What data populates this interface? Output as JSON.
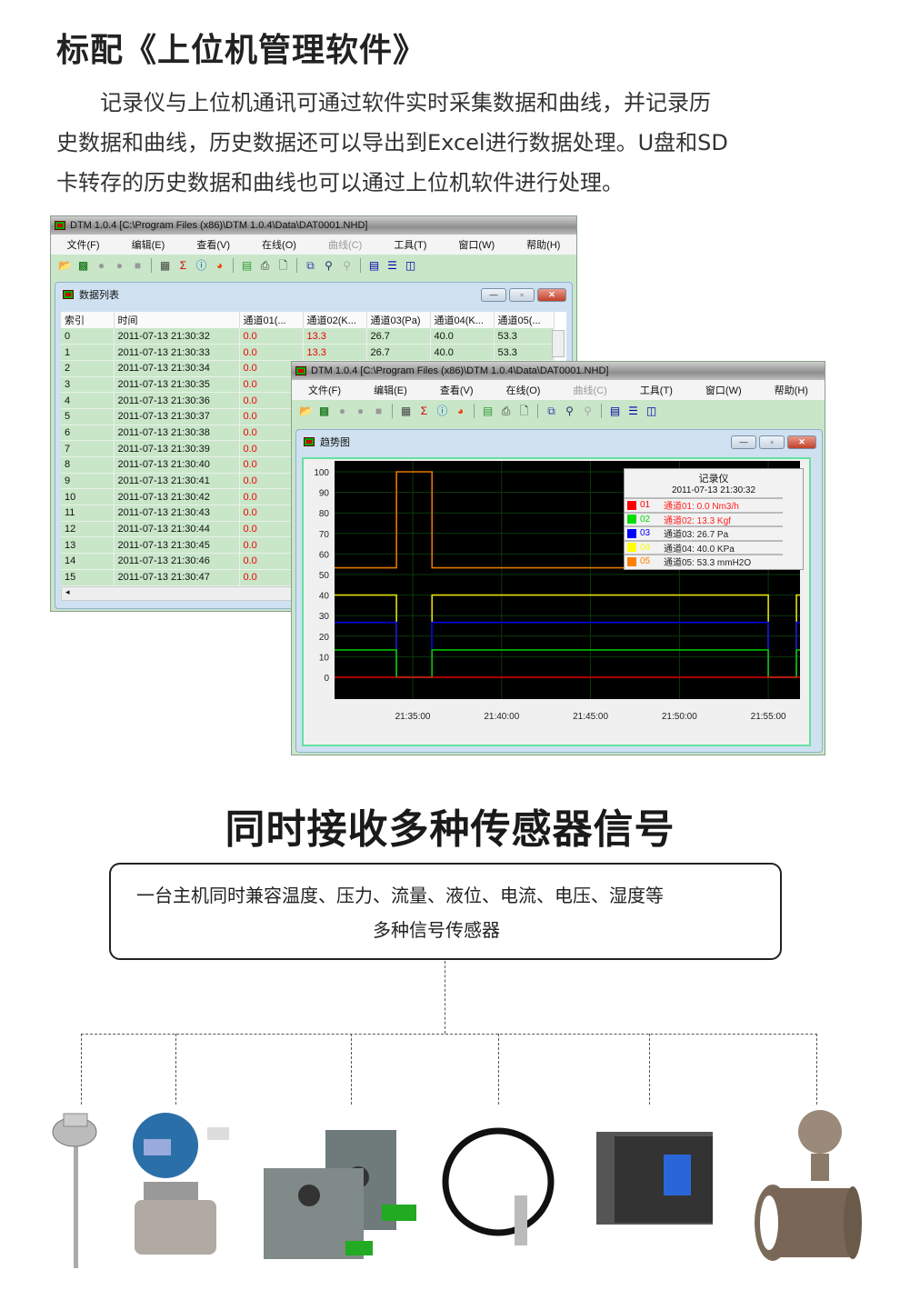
{
  "header": {
    "title": "标配《上位机管理软件》",
    "paragraph_lines": [
      "　　记录仪与上位机通讯可通过软件实时采集数据和曲线，并记录历",
      "史数据和曲线，历史数据还可以导出到Excel进行数据处理。U盘和SD",
      "卡转存的历史数据和曲线也可以通过上位机软件进行处理。"
    ]
  },
  "app": {
    "title": "DTM 1.0.4 [C:\\Program Files (x86)\\DTM 1.0.4\\Data\\DAT0001.NHD]",
    "menu": [
      {
        "label": "文件(F)"
      },
      {
        "label": "编辑(E)"
      },
      {
        "label": "查看(V)"
      },
      {
        "label": "在线(O)"
      },
      {
        "label": "曲线(C)",
        "disabled": true
      },
      {
        "label": "工具(T)"
      },
      {
        "label": "窗口(W)"
      },
      {
        "label": "帮助(H)"
      }
    ],
    "toolbar_icons": [
      "open-folder-icon",
      "trend-icon",
      "record-icon",
      "pause-icon",
      "stop-icon",
      "grid-icon",
      "sum-icon",
      "info-icon",
      "chart-icon",
      "export-icon",
      "print-icon",
      "preview-icon",
      "copy-icon",
      "zoom-icon",
      "find-icon",
      "cascade-icon",
      "tile-horizontal-icon",
      "tile-vertical-icon"
    ]
  },
  "data_list": {
    "title": "数据列表",
    "columns": [
      "索引",
      "时间",
      "通道01(...",
      "通道02(K...",
      "通道03(Pa)",
      "通道04(K...",
      "通道05(..."
    ],
    "rows": [
      [
        "0",
        "2011-07-13 21:30:32",
        "0.0",
        "13.3",
        "26.7",
        "40.0",
        "53.3"
      ],
      [
        "1",
        "2011-07-13 21:30:33",
        "0.0",
        "13.3",
        "26.7",
        "40.0",
        "53.3"
      ],
      [
        "2",
        "2011-07-13 21:30:34",
        "0.0"
      ],
      [
        "3",
        "2011-07-13 21:30:35",
        "0.0"
      ],
      [
        "4",
        "2011-07-13 21:30:36",
        "0.0"
      ],
      [
        "5",
        "2011-07-13 21:30:37",
        "0.0"
      ],
      [
        "6",
        "2011-07-13 21:30:38",
        "0.0"
      ],
      [
        "7",
        "2011-07-13 21:30:39",
        "0.0"
      ],
      [
        "8",
        "2011-07-13 21:30:40",
        "0.0"
      ],
      [
        "9",
        "2011-07-13 21:30:41",
        "0.0"
      ],
      [
        "10",
        "2011-07-13 21:30:42",
        "0.0"
      ],
      [
        "11",
        "2011-07-13 21:30:43",
        "0.0"
      ],
      [
        "12",
        "2011-07-13 21:30:44",
        "0.0"
      ],
      [
        "13",
        "2011-07-13 21:30:45",
        "0.0"
      ],
      [
        "14",
        "2011-07-13 21:30:46",
        "0.0"
      ],
      [
        "15",
        "2011-07-13 21:30:47",
        "0.0"
      ]
    ]
  },
  "trend": {
    "title": "趋势图",
    "legend": {
      "title": "记录仪",
      "time": "2011-07-13 21:30:32",
      "items": [
        {
          "code": "01",
          "text": "通道01: 0.0 Nm3/h",
          "color": "#ff0000",
          "text_color": "#ff2020"
        },
        {
          "code": "02",
          "text": "通道02: 13.3 Kgf",
          "color": "#00dd00",
          "text_color": "#ff2020"
        },
        {
          "code": "03",
          "text": "通道03: 26.7 Pa",
          "color": "#0000ff",
          "text_color": "#222222"
        },
        {
          "code": "04",
          "text": "通道04: 40.0 KPa",
          "color": "#ffff00",
          "text_color": "#222222"
        },
        {
          "code": "05",
          "text": "通道05: 53.3 mmH2O",
          "color": "#ff8000",
          "text_color": "#222222"
        }
      ]
    }
  },
  "chart_data": {
    "type": "line",
    "xlim": [
      "21:30:36",
      "21:56:47"
    ],
    "ylim": [
      0,
      100
    ],
    "yticks": [
      0,
      10,
      20,
      30,
      40,
      50,
      60,
      70,
      80,
      90,
      100
    ],
    "xticks": [
      "21:35:00",
      "21:40:00",
      "21:45:00",
      "21:50:00",
      "21:55:00"
    ],
    "grid": true,
    "legend_placement": "top-right",
    "series": [
      {
        "name": "01",
        "color": "#e00000",
        "points": [
          [
            "21:30:36",
            0
          ],
          [
            "21:56:47",
            0
          ]
        ]
      },
      {
        "name": "02",
        "color": "#00c000",
        "points": [
          [
            "21:30:36",
            13.3
          ],
          [
            "21:34:05",
            13.3
          ],
          [
            "21:34:05",
            0
          ],
          [
            "21:36:05",
            0
          ],
          [
            "21:36:05",
            13.3
          ],
          [
            "21:55:00",
            13.3
          ],
          [
            "21:55:00",
            0
          ],
          [
            "21:56:35",
            0
          ],
          [
            "21:56:35",
            13.3
          ],
          [
            "21:56:47",
            13.3
          ]
        ]
      },
      {
        "name": "03",
        "color": "#0000e0",
        "points": [
          [
            "21:30:36",
            26.7
          ],
          [
            "21:34:05",
            26.7
          ],
          [
            "21:34:05",
            0
          ],
          [
            "21:36:05",
            0
          ],
          [
            "21:36:05",
            26.7
          ],
          [
            "21:55:00",
            26.7
          ],
          [
            "21:55:00",
            0
          ],
          [
            "21:56:35",
            0
          ],
          [
            "21:56:35",
            26.7
          ],
          [
            "21:56:47",
            26.7
          ]
        ]
      },
      {
        "name": "04",
        "color": "#e0e000",
        "points": [
          [
            "21:30:36",
            40
          ],
          [
            "21:34:05",
            40
          ],
          [
            "21:34:05",
            0
          ],
          [
            "21:36:05",
            0
          ],
          [
            "21:36:05",
            40
          ],
          [
            "21:55:00",
            40
          ],
          [
            "21:55:00",
            0
          ],
          [
            "21:56:35",
            0
          ],
          [
            "21:56:35",
            40
          ],
          [
            "21:56:47",
            40
          ]
        ]
      },
      {
        "name": "05",
        "color": "#e07800",
        "points": [
          [
            "21:30:36",
            53.3
          ],
          [
            "21:34:05",
            53.3
          ],
          [
            "21:34:05",
            100
          ],
          [
            "21:36:05",
            100
          ],
          [
            "21:36:05",
            53.3
          ],
          [
            "21:55:00",
            53.3
          ],
          [
            "21:55:00",
            100
          ],
          [
            "21:56:35",
            100
          ],
          [
            "21:56:35",
            53.3
          ],
          [
            "21:56:47",
            53.3
          ]
        ]
      }
    ]
  },
  "section2": {
    "title": "同时接收多种传感器信号",
    "desc_lines": [
      "一台主机同时兼容温度、压力、流量、液位、电流、电压、湿度等",
      "多种信号传感器"
    ],
    "sensors": [
      "temperature-sensor",
      "pressure-transmitter",
      "current-transducer",
      "level-sensor",
      "panel-meter",
      "electromagnetic-flowmeter"
    ]
  }
}
